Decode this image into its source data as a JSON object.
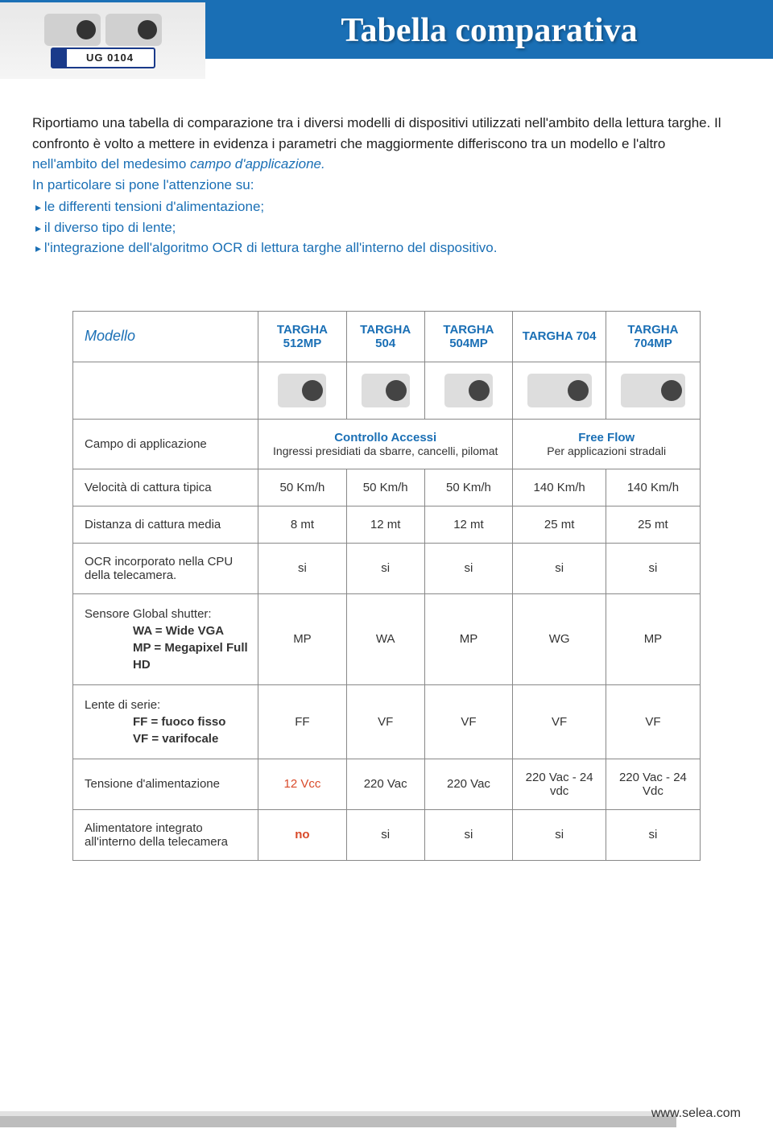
{
  "header": {
    "title": "Tabella comparativa",
    "plate_text": "UG 0104"
  },
  "intro": {
    "line1_black": "Riportiamo una tabella di comparazione tra i diversi modelli di dispositivi utilizzati nell'ambito della lettura targhe. Il confronto è volto a mettere in evidenza i parametri che maggiormente differiscono tra un modello e l'altro ",
    "line1_blue": "nell'ambito del medesimo ",
    "line1_italic": "campo d'applicazione.",
    "line2": "In particolare si pone l'attenzione su:",
    "bullets": [
      "le differenti tensioni d'alimentazione;",
      "il diverso tipo di lente;",
      "l'integrazione dell'algoritmo OCR di lettura targhe all'interno del dispositivo."
    ]
  },
  "table": {
    "model_label": "Modello",
    "columns": [
      "TARGHA 512MP",
      "TARGHA 504",
      "TARGHA 504MP",
      "TARGHA 704",
      "TARGHA 704MP"
    ],
    "app_row": {
      "label": "Campo di applicazione",
      "left_title": "Controllo Accessi",
      "left_sub": "Ingressi presidiati da sbarre, cancelli, pilomat",
      "right_title": "Free Flow",
      "right_sub": "Per applicazioni stradali"
    },
    "rows": [
      {
        "label": "Velocità di cattura tipica",
        "cells": [
          "50 Km/h",
          "50 Km/h",
          "50 Km/h",
          "140 Km/h",
          "140 Km/h"
        ]
      },
      {
        "label": "Distanza di cattura media",
        "cells": [
          "8 mt",
          "12 mt",
          "12 mt",
          "25 mt",
          "25 mt"
        ]
      },
      {
        "label": "OCR incorporato nella CPU della telecamera.",
        "cells": [
          "si",
          "si",
          "si",
          "si",
          "si"
        ]
      }
    ],
    "sensor_row": {
      "label_l1": "Sensore Global shutter:",
      "label_l2": "WA = Wide VGA",
      "label_l3": "MP = Megapixel Full HD",
      "cells": [
        "MP",
        "WA",
        "MP",
        "WG",
        "MP"
      ]
    },
    "lens_row": {
      "label_l1": "Lente di serie:",
      "label_l2": "FF = fuoco fisso",
      "label_l3": "VF = varifocale",
      "cells": [
        "FF",
        "VF",
        "VF",
        "VF",
        "VF"
      ]
    },
    "power_row": {
      "label": "Tensione d'alimentazione",
      "cells": [
        "12 Vcc",
        "220 Vac",
        "220 Vac",
        "220 Vac - 24 vdc",
        "220 Vac - 24 Vdc"
      ],
      "red_idx": 0
    },
    "psu_row": {
      "label": "Alimentatore integrato all'interno della telecamera",
      "cells": [
        "no",
        "si",
        "si",
        "si",
        "si"
      ],
      "red_idx": 0
    }
  },
  "footer_url": "www.selea.com",
  "colors": {
    "brand_blue": "#1a6fb5",
    "accent_red": "#d94a2a",
    "border_grey": "#888888",
    "footer_grey": "#bdbdbd"
  }
}
